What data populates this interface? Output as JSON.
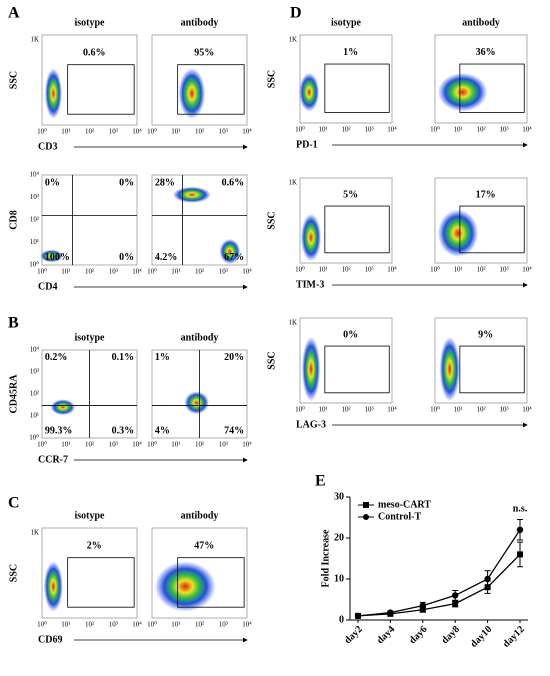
{
  "figure": {
    "panels": [
      "A",
      "B",
      "C",
      "D",
      "E"
    ],
    "rows": [
      {
        "titles": [
          "isotype",
          "antibody"
        ],
        "y_label": "SSC",
        "x_label": "CD3",
        "y_ticks": [
          "1K"
        ],
        "x_ticks": [
          "10⁰",
          "10¹",
          "10²",
          "10³",
          "10⁴"
        ],
        "gate": "box",
        "plots": [
          {
            "labels": [
              "0.6%"
            ]
          },
          {
            "labels": [
              "95%"
            ]
          }
        ]
      },
      {
        "y_label": "CD8",
        "x_label": "CD4",
        "y_ticks": [
          "10⁰",
          "10¹",
          "10²",
          "10³",
          "10⁴"
        ],
        "x_ticks": [
          "10⁰",
          "10¹",
          "10²",
          "10³",
          "10⁴"
        ],
        "gate": "quad",
        "plots": [
          {
            "labels": [
              "0%",
              "0%",
              "100%",
              "0%"
            ]
          },
          {
            "labels": [
              "28%",
              "0.6%",
              "4.2%",
              "67%"
            ]
          }
        ]
      },
      {
        "titles": [
          "isotype",
          "antibody"
        ],
        "y_label": "CD45RA",
        "x_label": "CCR-7",
        "y_ticks": [
          "10⁰",
          "10¹",
          "10²",
          "10³",
          "10⁴"
        ],
        "x_ticks": [
          "10⁰",
          "10¹",
          "10²",
          "10³",
          "10⁴"
        ],
        "gate": "quad",
        "plots": [
          {
            "labels": [
              "0.2%",
              "0.1%",
              "99.3%",
              "0.3%"
            ]
          },
          {
            "labels": [
              "1%",
              "20%",
              "4%",
              "74%"
            ]
          }
        ]
      },
      {
        "titles": [
          "isotype",
          "antibody"
        ],
        "y_label": "SSC",
        "x_label": "CD69",
        "y_ticks": [
          "1K"
        ],
        "x_ticks": [
          "10⁰",
          "10¹",
          "10²",
          "10³",
          "10⁴"
        ],
        "gate": "box",
        "plots": [
          {
            "labels": [
              "2%"
            ]
          },
          {
            "labels": [
              "47%"
            ]
          }
        ]
      },
      {
        "titles": [
          "isotype",
          "antibody"
        ],
        "y_label": "SSC",
        "x_label": "PD-1",
        "y_ticks": [
          "1K"
        ],
        "x_ticks": [
          "10⁰",
          "10¹",
          "10²",
          "10³",
          "10⁴"
        ],
        "gate": "box",
        "plots": [
          {
            "labels": [
              "1%"
            ]
          },
          {
            "labels": [
              "36%"
            ]
          }
        ]
      },
      {
        "y_label": "SSC",
        "x_label": "TIM-3",
        "y_ticks": [
          "1K"
        ],
        "x_ticks": [
          "10⁰",
          "10¹",
          "10²",
          "10³",
          "10⁴"
        ],
        "gate": "box",
        "plots": [
          {
            "labels": [
              "5%"
            ]
          },
          {
            "labels": [
              "17%"
            ]
          }
        ]
      },
      {
        "y_label": "SSC",
        "x_label": "LAG-3",
        "y_ticks": [
          "1K"
        ],
        "x_ticks": [
          "10⁰",
          "10¹",
          "10²",
          "10³",
          "10⁴"
        ],
        "gate": "box",
        "plots": [
          {
            "labels": [
              "0%"
            ]
          },
          {
            "labels": [
              "9%"
            ]
          }
        ]
      }
    ]
  },
  "chart_data": {
    "type": "line",
    "y_label": "Fold Increase",
    "annotation": "n.s.",
    "categories": [
      "day2",
      "day4",
      "day6",
      "day8",
      "day10",
      "day12"
    ],
    "series": [
      {
        "name": "meso-CART",
        "color": "#000000",
        "marker": "square",
        "values": [
          1,
          1.5,
          2.5,
          4,
          8,
          16
        ],
        "errors": [
          0.3,
          0.3,
          0.5,
          0.8,
          1.5,
          3
        ]
      },
      {
        "name": "Control-T",
        "color": "#000000",
        "marker": "circle",
        "values": [
          1,
          1.8,
          3.5,
          6,
          10,
          22
        ],
        "errors": [
          0.3,
          0.4,
          0.8,
          1.2,
          2,
          2.5
        ]
      }
    ],
    "ylim": [
      0,
      30
    ],
    "yticks": [
      0,
      10,
      20,
      30
    ]
  }
}
